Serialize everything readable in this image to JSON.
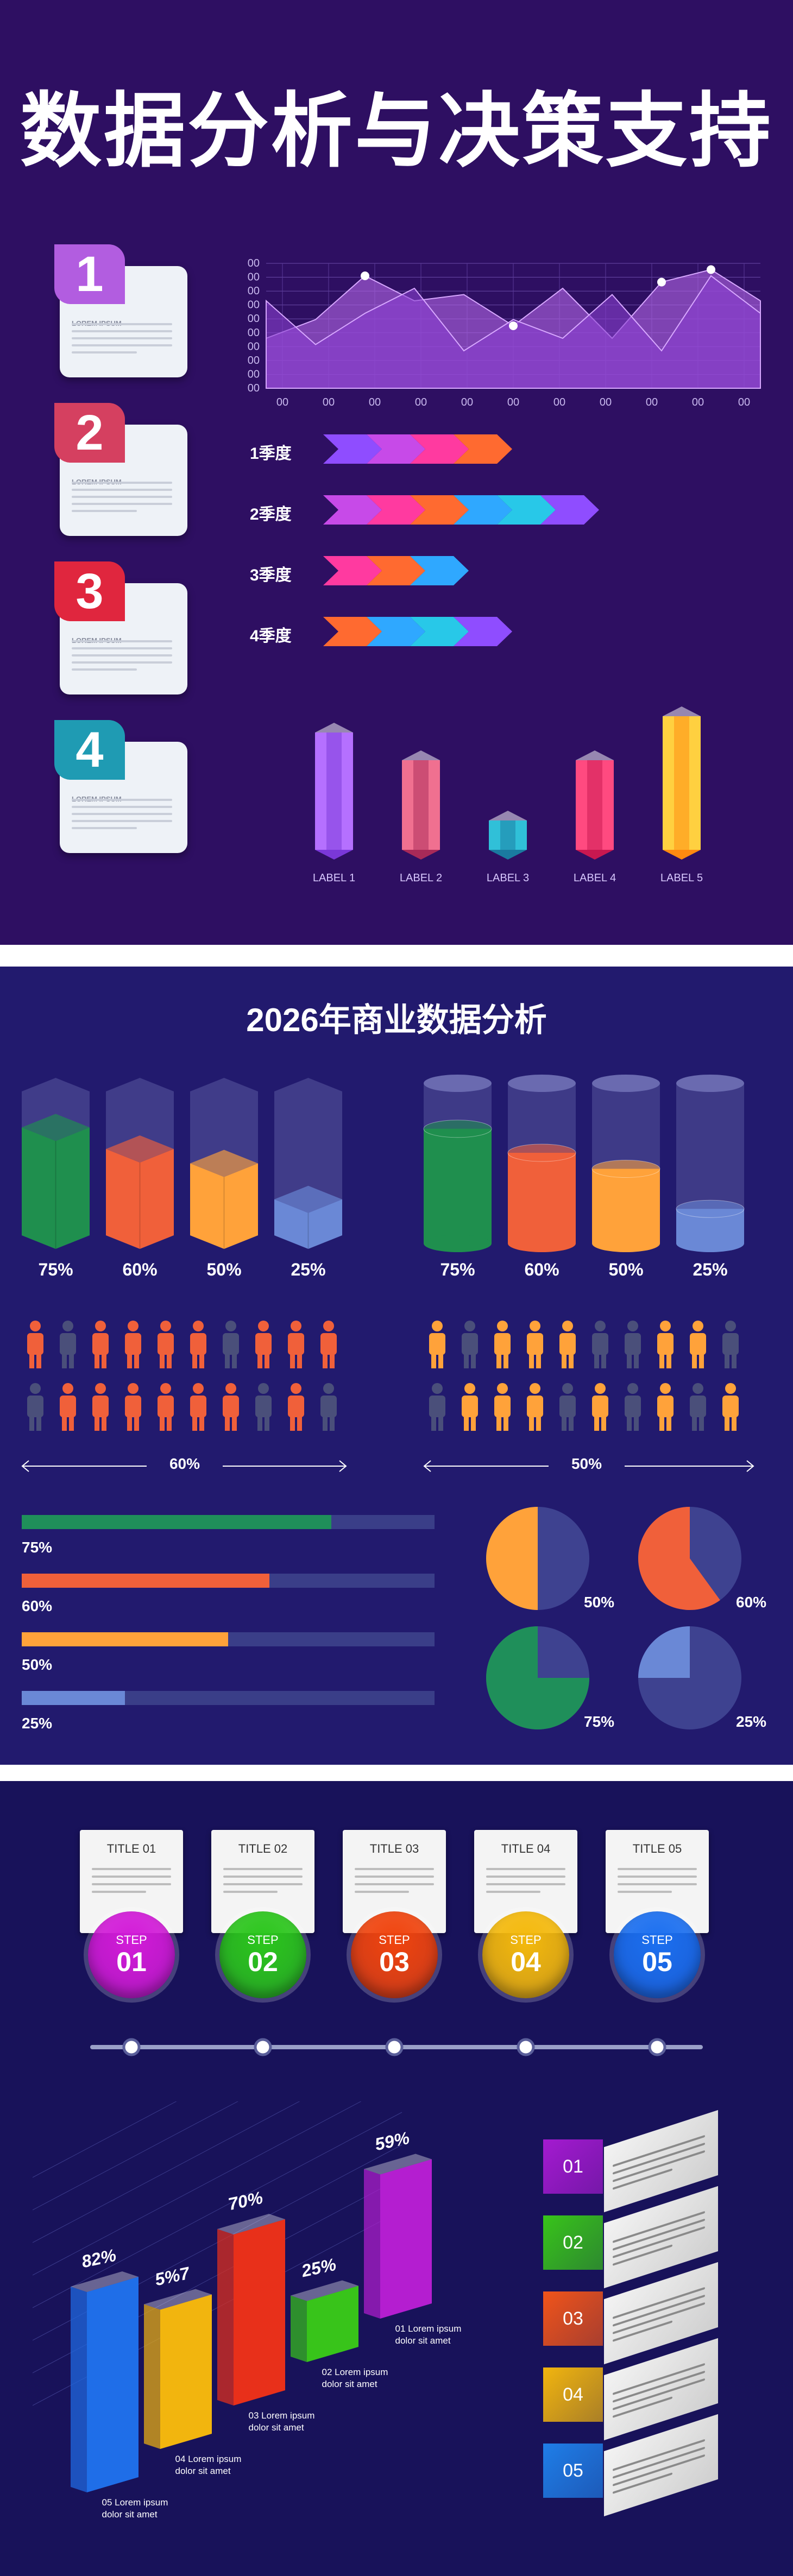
{
  "section1": {
    "title": "数据分析与决策支持",
    "steps": [
      {
        "num": "1",
        "label": "LOREM IPSUM",
        "color": "#b25de0"
      },
      {
        "num": "2",
        "label": "LOREM IPSUM",
        "color": "#d54060"
      },
      {
        "num": "3",
        "label": "LOREM IPSUM",
        "color": "#e0263e"
      },
      {
        "num": "4",
        "label": "LOREM IPSUM",
        "color": "#1f9bb3"
      }
    ],
    "area_chart": {
      "y_ticks": [
        "00",
        "00",
        "00",
        "00",
        "00",
        "00",
        "00",
        "00",
        "00",
        "00"
      ],
      "x_ticks": [
        "00",
        "00",
        "00",
        "00",
        "00",
        "00",
        "00",
        "00",
        "00",
        "00",
        "00"
      ]
    },
    "quarters": [
      {
        "label": "1季度",
        "segments": 4
      },
      {
        "label": "2季度",
        "segments": 6
      },
      {
        "label": "3季度",
        "segments": 3
      },
      {
        "label": "4季度",
        "segments": 4
      }
    ],
    "bars3d": {
      "labels": [
        "LABEL 1",
        "LABEL 2",
        "LABEL 3",
        "LABEL 4",
        "LABEL 5"
      ],
      "values": [
        72,
        55,
        18,
        55,
        82
      ]
    }
  },
  "section2": {
    "title": "2026年商业数据分析",
    "prisms": [
      "75%",
      "60%",
      "50%",
      "25%"
    ],
    "prism_values": [
      75,
      60,
      50,
      25
    ],
    "prism_colors": [
      "#1f8f4e",
      "#f0603a",
      "#ffa23a",
      "#6a88d6"
    ],
    "cylinders": [
      "75%",
      "60%",
      "50%",
      "25%"
    ],
    "people_left_label": "60%",
    "people_right_label": "50%",
    "hbars": [
      {
        "label": "75%",
        "value": 75,
        "color": "#1f8f5a"
      },
      {
        "label": "60%",
        "value": 60,
        "color": "#f0603a"
      },
      {
        "label": "50%",
        "value": 50,
        "color": "#ffa23a"
      },
      {
        "label": "25%",
        "value": 25,
        "color": "#6a88d6"
      }
    ],
    "pies": [
      {
        "label": "50%",
        "value": 50,
        "color": "#ffa23a"
      },
      {
        "label": "60%",
        "value": 60,
        "color": "#f0603a"
      },
      {
        "label": "75%",
        "value": 75,
        "color": "#1f8f5a"
      },
      {
        "label": "25%",
        "value": 25,
        "color": "#6a88d6"
      }
    ]
  },
  "section3": {
    "titles": [
      "TITLE 01",
      "TITLE 02",
      "TITLE 03",
      "TITLE 04",
      "TITLE 05"
    ],
    "step_word": "STEP",
    "step_nums": [
      "01",
      "02",
      "03",
      "04",
      "05"
    ],
    "step_colors": [
      "#d21bd8",
      "#2bc61c",
      "#f0440e",
      "#f4b90c",
      "#1b6ff0"
    ],
    "bars": [
      {
        "value_label": "82%",
        "value": 82,
        "color": "#1f6ee8",
        "caption": [
          "05 Lorem ipsum",
          "dolor sit amet"
        ]
      },
      {
        "value_label": "5%7",
        "value": 57,
        "color": "#f2b50e",
        "caption": [
          "04 Lorem ipsum",
          "dolor sit amet"
        ]
      },
      {
        "value_label": "70%",
        "value": 70,
        "color": "#e8301a",
        "caption": [
          "03 Lorem ipsum",
          "dolor sit amet"
        ]
      },
      {
        "value_label": "25%",
        "value": 25,
        "color": "#38c41a",
        "caption": [
          "02 Lorem ipsum",
          "dolor sit amet"
        ]
      },
      {
        "value_label": "59%",
        "value": 59,
        "color": "#b41ed0",
        "caption": [
          "01 Lorem ipsum",
          "dolor sit amet"
        ]
      }
    ],
    "step_rows": [
      {
        "num": "01",
        "color": "#a41ad0"
      },
      {
        "num": "02",
        "color": "#38c41a"
      },
      {
        "num": "03",
        "color": "#f0541a"
      },
      {
        "num": "04",
        "color": "#f2b50e"
      },
      {
        "num": "05",
        "color": "#1f7ee8"
      }
    ]
  },
  "chart_data": [
    {
      "type": "area",
      "x": [
        1,
        2,
        3,
        4,
        5,
        6,
        7,
        8,
        9,
        10,
        11
      ],
      "series": [
        {
          "values": [
            40,
            55,
            90,
            70,
            75,
            50,
            80,
            40,
            85,
            95,
            70
          ]
        },
        {
          "values": [
            70,
            35,
            60,
            80,
            30,
            55,
            40,
            75,
            30,
            90,
            60
          ]
        }
      ]
    },
    {
      "type": "bar",
      "categories": [
        "LABEL 1",
        "LABEL 2",
        "LABEL 3",
        "LABEL 4",
        "LABEL 5"
      ],
      "values": [
        72,
        55,
        18,
        55,
        82
      ]
    },
    {
      "type": "bar",
      "categories": [
        "75%",
        "60%",
        "50%",
        "25%"
      ],
      "values": [
        75,
        60,
        50,
        25
      ]
    },
    {
      "type": "pie",
      "values": [
        50,
        60,
        75,
        25
      ]
    },
    {
      "type": "bar",
      "categories": [
        "82%",
        "5%7",
        "70%",
        "25%",
        "59%"
      ],
      "values": [
        82,
        57,
        70,
        25,
        59
      ]
    }
  ]
}
